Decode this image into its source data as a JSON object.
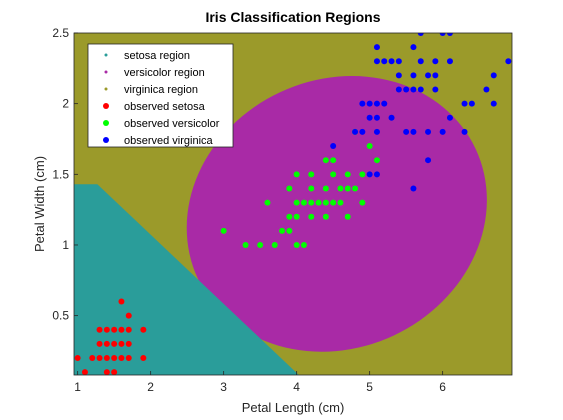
{
  "chart_data": {
    "type": "scatter",
    "title": "Iris Classification Regions",
    "xlabel": "Petal Length (cm)",
    "ylabel": "Petal Width (cm)",
    "xlim": [
      0.95,
      6.95
    ],
    "ylim": [
      0.08,
      2.5
    ],
    "x_ticks": [
      1,
      2,
      3,
      4,
      5,
      6
    ],
    "y_ticks": [
      0.5,
      1,
      1.5,
      2,
      2.5
    ],
    "x_tick_labels": [
      "1",
      "2",
      "3",
      "4",
      "5",
      "6"
    ],
    "y_tick_labels": [
      "0.5",
      "1",
      "1.5",
      "2",
      "2.5"
    ],
    "grid": false,
    "legend_position": "top-left",
    "regions": {
      "setosa_boundary_line": {
        "x_at_top": 1.27,
        "y_at_top": 1.43,
        "x_at_bottom": 4.03,
        "y_at_bottom": 0.08
      },
      "versicolor_ellipse": {
        "center": [
          4.55,
          1.22
        ],
        "semi_axis_x": 2.1,
        "semi_axis_y": 0.95,
        "rotation_deg": 25
      }
    },
    "legend": [
      {
        "label": "setosa region",
        "color": "#2a9d9a",
        "marker": "dot"
      },
      {
        "label": "versicolor region",
        "color": "#a92aa6",
        "marker": "dot"
      },
      {
        "label": "virginica region",
        "color": "#9b9a2a",
        "marker": "dot"
      },
      {
        "label": "observed setosa",
        "color": "#ff0000",
        "marker": "circle"
      },
      {
        "label": "observed versicolor",
        "color": "#00ff00",
        "marker": "circle"
      },
      {
        "label": "observed virginica",
        "color": "#0000ff",
        "marker": "circle"
      }
    ],
    "series": [
      {
        "name": "observed setosa",
        "color": "#ff0000",
        "points": [
          [
            1.0,
            0.2
          ],
          [
            1.1,
            0.1
          ],
          [
            1.2,
            0.2
          ],
          [
            1.3,
            0.2
          ],
          [
            1.4,
            0.2
          ],
          [
            1.5,
            0.2
          ],
          [
            1.6,
            0.2
          ],
          [
            1.7,
            0.2
          ],
          [
            1.9,
            0.2
          ],
          [
            1.3,
            0.3
          ],
          [
            1.4,
            0.3
          ],
          [
            1.5,
            0.3
          ],
          [
            1.7,
            0.3
          ],
          [
            1.9,
            0.4
          ],
          [
            1.3,
            0.4
          ],
          [
            1.5,
            0.4
          ],
          [
            1.6,
            0.4
          ],
          [
            1.7,
            0.4
          ],
          [
            1.4,
            0.1
          ],
          [
            1.5,
            0.1
          ],
          [
            1.6,
            0.6
          ],
          [
            1.7,
            0.5
          ],
          [
            1.4,
            0.4
          ],
          [
            1.6,
            0.3
          ]
        ]
      },
      {
        "name": "observed versicolor",
        "color": "#00ff00",
        "points": [
          [
            3.0,
            1.1
          ],
          [
            3.3,
            1.0
          ],
          [
            3.5,
            1.0
          ],
          [
            3.6,
            1.3
          ],
          [
            3.7,
            1.0
          ],
          [
            3.8,
            1.1
          ],
          [
            3.9,
            1.1
          ],
          [
            3.9,
            1.2
          ],
          [
            3.9,
            1.4
          ],
          [
            4.0,
            1.0
          ],
          [
            4.0,
            1.2
          ],
          [
            4.0,
            1.3
          ],
          [
            4.1,
            1.0
          ],
          [
            4.1,
            1.3
          ],
          [
            4.2,
            1.2
          ],
          [
            4.2,
            1.3
          ],
          [
            4.2,
            1.5
          ],
          [
            4.3,
            1.3
          ],
          [
            4.4,
            1.2
          ],
          [
            4.4,
            1.3
          ],
          [
            4.4,
            1.4
          ],
          [
            4.5,
            1.3
          ],
          [
            4.5,
            1.5
          ],
          [
            4.6,
            1.3
          ],
          [
            4.6,
            1.4
          ],
          [
            4.7,
            1.2
          ],
          [
            4.7,
            1.4
          ],
          [
            4.8,
            1.4
          ],
          [
            4.8,
            1.8
          ],
          [
            4.9,
            1.5
          ],
          [
            5.0,
            1.7
          ],
          [
            4.5,
            1.6
          ],
          [
            4.7,
            1.5
          ],
          [
            4.9,
            1.3
          ],
          [
            4.0,
            1.5
          ],
          [
            4.2,
            1.4
          ],
          [
            4.4,
            1.6
          ],
          [
            5.1,
            1.6
          ]
        ]
      },
      {
        "name": "observed virginica",
        "color": "#0000ff",
        "points": [
          [
            4.5,
            1.7
          ],
          [
            4.8,
            1.8
          ],
          [
            4.9,
            1.8
          ],
          [
            5.0,
            1.5
          ],
          [
            5.0,
            1.9
          ],
          [
            5.0,
            2.0
          ],
          [
            5.1,
            1.5
          ],
          [
            5.1,
            1.8
          ],
          [
            5.1,
            1.9
          ],
          [
            5.1,
            2.0
          ],
          [
            5.1,
            2.3
          ],
          [
            5.1,
            2.4
          ],
          [
            5.2,
            2.0
          ],
          [
            5.3,
            1.9
          ],
          [
            5.3,
            2.3
          ],
          [
            5.4,
            2.1
          ],
          [
            5.4,
            2.3
          ],
          [
            5.5,
            1.8
          ],
          [
            5.5,
            2.1
          ],
          [
            5.6,
            1.4
          ],
          [
            5.6,
            1.8
          ],
          [
            5.6,
            2.1
          ],
          [
            5.6,
            2.2
          ],
          [
            5.6,
            2.4
          ],
          [
            5.7,
            2.1
          ],
          [
            5.7,
            2.3
          ],
          [
            5.7,
            2.5
          ],
          [
            5.8,
            1.6
          ],
          [
            5.8,
            1.8
          ],
          [
            5.8,
            2.2
          ],
          [
            5.9,
            2.1
          ],
          [
            5.9,
            2.3
          ],
          [
            6.0,
            1.8
          ],
          [
            6.0,
            2.5
          ],
          [
            6.1,
            1.9
          ],
          [
            6.1,
            2.3
          ],
          [
            6.1,
            2.5
          ],
          [
            6.3,
            1.8
          ],
          [
            6.4,
            2.0
          ],
          [
            6.6,
            2.1
          ],
          [
            6.7,
            2.0
          ],
          [
            6.7,
            2.2
          ],
          [
            6.9,
            2.3
          ],
          [
            5.2,
            2.3
          ],
          [
            4.9,
            2.0
          ],
          [
            5.4,
            2.2
          ],
          [
            5.9,
            2.2
          ],
          [
            6.3,
            2.0
          ]
        ]
      }
    ]
  }
}
